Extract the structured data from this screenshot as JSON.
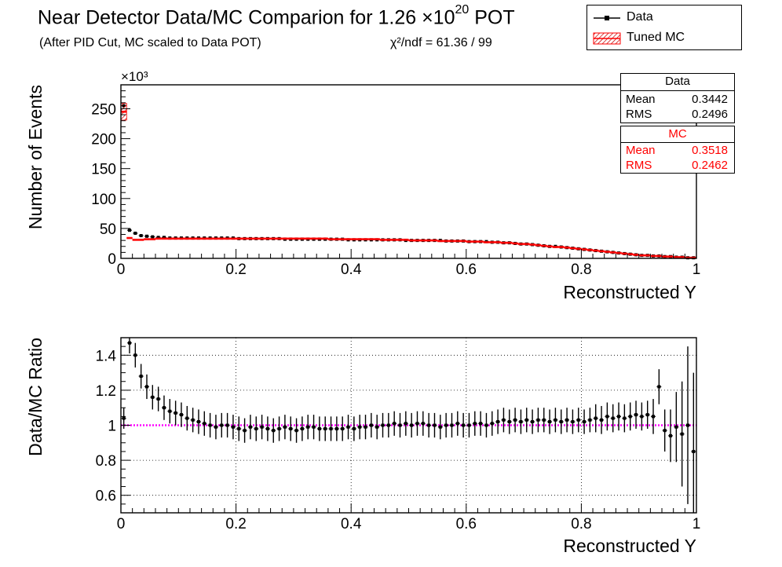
{
  "title": {
    "text": "Near Detector Data/MC Comparion for 1.26 ×10",
    "exponent": "20",
    "suffix": " POT"
  },
  "subtitle": "(After PID Cut, MC scaled to Data POT)",
  "chi2_label": "χ²/ndf = 61.36 / 99",
  "legend": {
    "entries": [
      {
        "label": "Data",
        "color": "#000000",
        "symbol": "line-marker"
      },
      {
        "label": "Tuned MC",
        "color": "#ff0000",
        "symbol": "hatched-box"
      }
    ],
    "placement": "top-right"
  },
  "stats": {
    "data": {
      "title": "Data",
      "rows": [
        {
          "key": "Mean",
          "value": "0.3442"
        },
        {
          "key": "RMS",
          "value": "0.2496"
        }
      ],
      "color": "#000000"
    },
    "mc": {
      "title": "MC",
      "rows": [
        {
          "key": "Mean",
          "value": "0.3518"
        },
        {
          "key": "RMS",
          "value": "0.2462"
        }
      ],
      "color": "#ff0000"
    }
  },
  "chart_data": [
    {
      "type": "scatter",
      "xlabel": "Reconstructed Y",
      "ylabel": "Number of Events",
      "y_multiplier_label": "×10³",
      "xlim": [
        0,
        1
      ],
      "ylim": [
        0,
        290
      ],
      "xticks": [
        "0",
        "0.2",
        "0.4",
        "0.6",
        "0.8",
        "1"
      ],
      "yticks": [
        "0",
        "50",
        "100",
        "150",
        "200",
        "250"
      ],
      "grid": false,
      "x": [
        0.005,
        0.015,
        0.025,
        0.035,
        0.045,
        0.055,
        0.065,
        0.075,
        0.085,
        0.095,
        0.105,
        0.115,
        0.125,
        0.135,
        0.145,
        0.155,
        0.165,
        0.175,
        0.185,
        0.195,
        0.205,
        0.215,
        0.225,
        0.235,
        0.245,
        0.255,
        0.265,
        0.275,
        0.285,
        0.295,
        0.305,
        0.315,
        0.325,
        0.335,
        0.345,
        0.355,
        0.365,
        0.375,
        0.385,
        0.395,
        0.405,
        0.415,
        0.425,
        0.435,
        0.445,
        0.455,
        0.465,
        0.475,
        0.485,
        0.495,
        0.505,
        0.515,
        0.525,
        0.535,
        0.545,
        0.555,
        0.565,
        0.575,
        0.585,
        0.595,
        0.605,
        0.615,
        0.625,
        0.635,
        0.645,
        0.655,
        0.665,
        0.675,
        0.685,
        0.695,
        0.705,
        0.715,
        0.725,
        0.735,
        0.745,
        0.755,
        0.765,
        0.775,
        0.785,
        0.795,
        0.805,
        0.815,
        0.825,
        0.835,
        0.845,
        0.855,
        0.865,
        0.875,
        0.885,
        0.895,
        0.905,
        0.915,
        0.925,
        0.935,
        0.945,
        0.955,
        0.965,
        0.975,
        0.985,
        0.995
      ],
      "series": [
        {
          "name": "Data",
          "color": "#000000",
          "values": [
            255,
            47,
            42,
            38,
            37,
            36,
            35,
            35,
            34,
            34,
            34,
            34,
            34,
            34,
            34,
            34,
            34,
            34,
            34,
            34,
            33,
            33,
            33,
            33,
            33,
            33,
            33,
            33,
            32,
            32,
            32,
            32,
            32,
            32,
            32,
            32,
            32,
            32,
            32,
            31,
            31,
            31,
            31,
            31,
            31,
            31,
            31,
            31,
            31,
            30,
            30,
            30,
            30,
            30,
            30,
            30,
            29,
            29,
            29,
            29,
            28,
            28,
            28,
            28,
            27,
            27,
            26,
            26,
            25,
            24,
            24,
            23,
            22,
            21,
            20,
            20,
            19,
            18,
            17,
            16,
            15,
            14,
            13,
            12,
            11,
            10,
            9,
            8,
            7,
            6,
            5,
            5,
            4,
            4,
            3,
            3,
            2,
            2,
            1,
            1
          ]
        },
        {
          "name": "Tuned MC",
          "color": "#ff0000",
          "values": [
            245,
            34,
            31,
            31,
            32,
            32,
            33,
            33,
            33,
            33,
            33,
            33,
            33,
            33,
            33,
            33,
            33,
            33,
            33,
            33,
            33,
            33,
            33,
            33,
            33,
            33,
            33,
            33,
            33,
            33,
            33,
            33,
            33,
            33,
            33,
            33,
            32,
            32,
            32,
            32,
            32,
            32,
            32,
            32,
            32,
            31,
            31,
            31,
            31,
            31,
            30,
            30,
            30,
            30,
            30,
            29,
            29,
            29,
            29,
            29,
            28,
            28,
            28,
            27,
            27,
            27,
            26,
            26,
            25,
            24,
            24,
            23,
            22,
            21,
            20,
            19,
            19,
            18,
            17,
            16,
            15,
            14,
            13,
            12,
            11,
            10,
            9,
            8,
            7,
            6,
            5,
            5,
            4,
            4,
            3,
            3,
            2,
            2,
            1,
            1
          ]
        }
      ]
    },
    {
      "type": "scatter",
      "xlabel": "Reconstructed Y",
      "ylabel": "Data/MC Ratio",
      "xlim": [
        0,
        1
      ],
      "ylim": [
        0.5,
        1.5
      ],
      "xticks": [
        "0",
        "0.2",
        "0.4",
        "0.6",
        "0.8",
        "1"
      ],
      "yticks": [
        "0.6",
        "0.8",
        "1",
        "1.2",
        "1.4"
      ],
      "grid": true,
      "reference_line": {
        "y": 1.0,
        "color": "#ff00ff"
      },
      "x": [
        0.005,
        0.015,
        0.025,
        0.035,
        0.045,
        0.055,
        0.065,
        0.075,
        0.085,
        0.095,
        0.105,
        0.115,
        0.125,
        0.135,
        0.145,
        0.155,
        0.165,
        0.175,
        0.185,
        0.195,
        0.205,
        0.215,
        0.225,
        0.235,
        0.245,
        0.255,
        0.265,
        0.275,
        0.285,
        0.295,
        0.305,
        0.315,
        0.325,
        0.335,
        0.345,
        0.355,
        0.365,
        0.375,
        0.385,
        0.395,
        0.405,
        0.415,
        0.425,
        0.435,
        0.445,
        0.455,
        0.465,
        0.475,
        0.485,
        0.495,
        0.505,
        0.515,
        0.525,
        0.535,
        0.545,
        0.555,
        0.565,
        0.575,
        0.585,
        0.595,
        0.605,
        0.615,
        0.625,
        0.635,
        0.645,
        0.655,
        0.665,
        0.675,
        0.685,
        0.695,
        0.705,
        0.715,
        0.725,
        0.735,
        0.745,
        0.755,
        0.765,
        0.775,
        0.785,
        0.795,
        0.805,
        0.815,
        0.825,
        0.835,
        0.845,
        0.855,
        0.865,
        0.875,
        0.885,
        0.895,
        0.905,
        0.915,
        0.925,
        0.935,
        0.945,
        0.955,
        0.965,
        0.975,
        0.985,
        0.995
      ],
      "series": [
        {
          "name": "Data",
          "color": "#000000",
          "values": [
            1.04,
            1.47,
            1.4,
            1.28,
            1.22,
            1.16,
            1.15,
            1.1,
            1.08,
            1.07,
            1.06,
            1.04,
            1.03,
            1.02,
            1.01,
            1.0,
            0.99,
            1.0,
            1.0,
            0.99,
            0.98,
            0.97,
            0.99,
            0.98,
            0.99,
            0.98,
            0.97,
            0.98,
            0.99,
            0.98,
            0.97,
            0.98,
            0.99,
            0.99,
            0.98,
            0.98,
            0.98,
            0.98,
            0.98,
            0.99,
            0.98,
            0.99,
            0.99,
            1.0,
            0.99,
            1.0,
            1.0,
            1.01,
            1.0,
            1.01,
            1.0,
            1.01,
            1.01,
            1.0,
            1.0,
            0.99,
            1.0,
            1.0,
            1.01,
            1.0,
            1.0,
            1.01,
            1.01,
            1.0,
            1.01,
            1.02,
            1.03,
            1.02,
            1.03,
            1.02,
            1.03,
            1.02,
            1.03,
            1.03,
            1.02,
            1.03,
            1.02,
            1.03,
            1.02,
            1.03,
            1.02,
            1.03,
            1.04,
            1.03,
            1.05,
            1.04,
            1.05,
            1.04,
            1.05,
            1.06,
            1.05,
            1.06,
            1.05,
            1.22,
            0.97,
            0.94,
            0.99,
            0.95,
            1.0,
            0.85
          ],
          "errors": [
            0.06,
            0.06,
            0.07,
            0.07,
            0.07,
            0.07,
            0.07,
            0.07,
            0.07,
            0.07,
            0.07,
            0.07,
            0.07,
            0.07,
            0.07,
            0.07,
            0.07,
            0.07,
            0.07,
            0.07,
            0.07,
            0.07,
            0.07,
            0.07,
            0.07,
            0.07,
            0.07,
            0.07,
            0.07,
            0.07,
            0.07,
            0.07,
            0.07,
            0.07,
            0.07,
            0.07,
            0.07,
            0.07,
            0.07,
            0.07,
            0.07,
            0.07,
            0.07,
            0.07,
            0.07,
            0.07,
            0.07,
            0.07,
            0.07,
            0.07,
            0.07,
            0.07,
            0.07,
            0.07,
            0.07,
            0.07,
            0.07,
            0.07,
            0.07,
            0.07,
            0.07,
            0.07,
            0.07,
            0.07,
            0.07,
            0.07,
            0.07,
            0.07,
            0.07,
            0.07,
            0.07,
            0.07,
            0.07,
            0.07,
            0.07,
            0.07,
            0.07,
            0.07,
            0.07,
            0.07,
            0.07,
            0.07,
            0.08,
            0.08,
            0.08,
            0.08,
            0.08,
            0.08,
            0.08,
            0.08,
            0.08,
            0.08,
            0.1,
            0.1,
            0.12,
            0.15,
            0.2,
            0.3,
            0.45,
            0.45
          ]
        }
      ]
    }
  ]
}
